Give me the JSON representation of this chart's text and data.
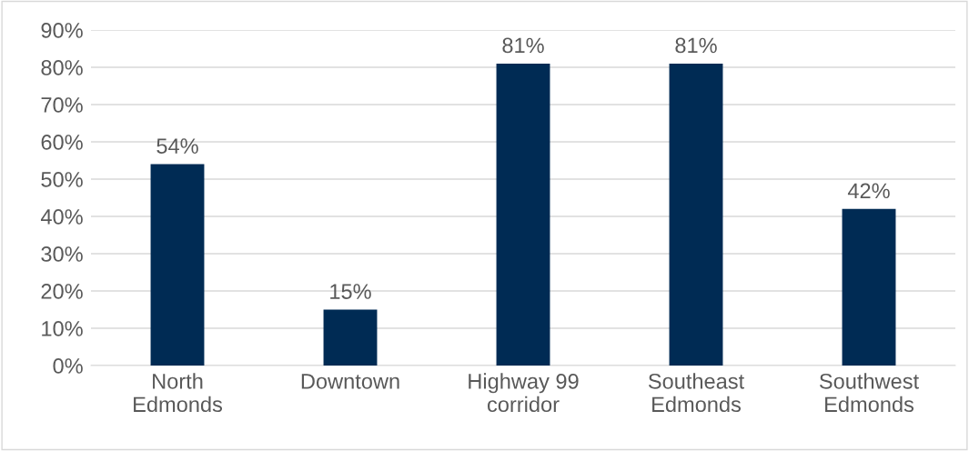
{
  "chart_data": {
    "type": "bar",
    "categories": [
      "North\nEdmonds",
      "Downtown",
      "Highway 99\ncorridor",
      "Southeast\nEdmonds",
      "Southwest\nEdmonds"
    ],
    "values": [
      54,
      15,
      81,
      81,
      42
    ],
    "value_labels": [
      "54%",
      "15%",
      "81%",
      "81%",
      "42%"
    ],
    "color": "#002b54",
    "ylim": [
      0,
      90
    ],
    "yticks": [
      {
        "value": 0,
        "label": "0%"
      },
      {
        "value": 10,
        "label": "10%"
      },
      {
        "value": 20,
        "label": "20%"
      },
      {
        "value": 30,
        "label": "30%"
      },
      {
        "value": 40,
        "label": "40%"
      },
      {
        "value": 50,
        "label": "50%"
      },
      {
        "value": 60,
        "label": "60%"
      },
      {
        "value": 70,
        "label": "70%"
      },
      {
        "value": 80,
        "label": "80%"
      },
      {
        "value": 90,
        "label": "90%"
      }
    ],
    "grid": "y"
  }
}
